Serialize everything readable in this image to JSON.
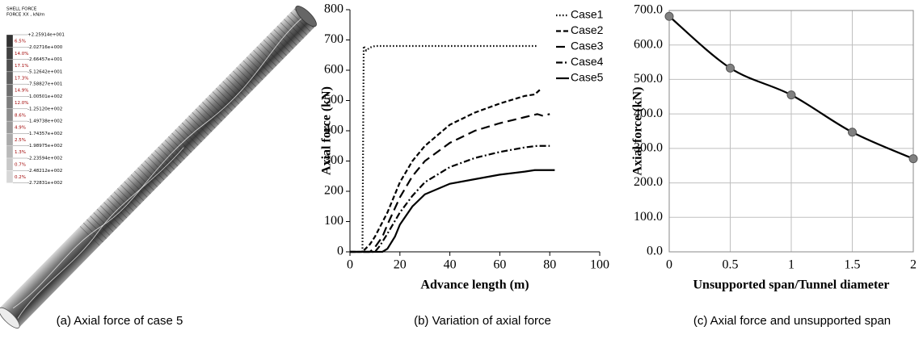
{
  "panel_a": {
    "title": "SHELL FORCE",
    "subtitle": "FORCE XX , kN/m",
    "levels": [
      "+2.25914e+001",
      "-2.02716e+000",
      "-2.66457e+001",
      "-5.12642e+001",
      "-7.58827e+001",
      "-1.00501e+002",
      "-1.25120e+002",
      "-1.49738e+002",
      "-1.74357e+002",
      "-1.98975e+002",
      "-2.23594e+002",
      "-2.48212e+002",
      "-2.72831e+002"
    ],
    "percents": [
      "6.5%",
      "14.0%",
      "17.1%",
      "17.3%",
      "14.9%",
      "12.0%",
      "8.6%",
      "4.9%",
      "2.5%",
      "1.3%",
      "0.7%",
      "0.2%"
    ],
    "caption": "(a) Axial force of case 5"
  },
  "chart_data": [
    {
      "type": "line",
      "caption": "(b) Variation of axial force",
      "xlabel": "Advance length (m)",
      "ylabel": "Axial force (kN)",
      "xlim": [
        0,
        100
      ],
      "xticks": [
        0,
        20,
        40,
        60,
        80,
        100
      ],
      "ylim": [
        0,
        800
      ],
      "yticks": [
        0,
        100,
        200,
        300,
        400,
        500,
        600,
        700,
        800
      ],
      "grid": false,
      "frame": false,
      "legend": "upper right",
      "series": [
        {
          "name": "Case1",
          "color": "#000000",
          "linestyle": "dotted",
          "x": [
            5,
            5.5,
            6.5,
            8,
            10,
            20,
            40,
            60,
            75
          ],
          "values": [
            0,
            680,
            665,
            675,
            680,
            680,
            680,
            680,
            680
          ]
        },
        {
          "name": "Case2",
          "color": "#000000",
          "linestyle": "dashed",
          "x": [
            0,
            5,
            8,
            10,
            15,
            20,
            25,
            30,
            40,
            50,
            60,
            70,
            74,
            76
          ],
          "values": [
            0,
            0,
            25,
            50,
            130,
            230,
            300,
            350,
            420,
            460,
            490,
            515,
            520,
            535
          ]
        },
        {
          "name": "Case3",
          "color": "#000000",
          "linestyle": "long-dashed",
          "x": [
            0,
            8,
            10,
            13,
            15,
            20,
            25,
            30,
            40,
            50,
            60,
            70,
            75,
            77,
            80
          ],
          "values": [
            0,
            0,
            15,
            50,
            90,
            180,
            250,
            300,
            360,
            400,
            425,
            445,
            455,
            450,
            455
          ]
        },
        {
          "name": "Case4",
          "color": "#000000",
          "linestyle": "dash-dot",
          "x": [
            0,
            10,
            12,
            15,
            20,
            25,
            30,
            40,
            50,
            60,
            70,
            75,
            80
          ],
          "values": [
            0,
            0,
            20,
            60,
            130,
            185,
            230,
            280,
            310,
            330,
            345,
            350,
            350
          ]
        },
        {
          "name": "Case5",
          "color": "#000000",
          "linestyle": "solid",
          "x": [
            0,
            13,
            15,
            18,
            20,
            25,
            30,
            40,
            50,
            60,
            70,
            74,
            82
          ],
          "values": [
            0,
            0,
            10,
            50,
            90,
            150,
            190,
            225,
            240,
            255,
            265,
            270,
            270
          ]
        }
      ]
    },
    {
      "type": "line",
      "caption": "(c) Axial force and unsupported span",
      "xlabel": "Unsupported span/Tunnel diameter",
      "ylabel": "Axial force (kN)",
      "xlim": [
        0,
        2
      ],
      "xticks": [
        0,
        0.5,
        1,
        1.5,
        2
      ],
      "ylim": [
        0,
        700
      ],
      "yticks": [
        {
          "value": 0,
          "label": "0.0"
        },
        {
          "value": 100,
          "label": "100.0"
        },
        {
          "value": 200,
          "label": "200.0"
        },
        {
          "value": 300,
          "label": "300.0"
        },
        {
          "value": 400,
          "label": "400.0"
        },
        {
          "value": 500,
          "label": "500.0"
        },
        {
          "value": 600,
          "label": "600.0"
        },
        {
          "value": 700,
          "label": "700.0"
        }
      ],
      "grid": true,
      "frame": true,
      "color": "#000000",
      "marker_color": "#808080",
      "x": [
        0,
        0.5,
        1,
        1.5,
        2
      ],
      "values": [
        683,
        533,
        455,
        347,
        270
      ]
    }
  ]
}
